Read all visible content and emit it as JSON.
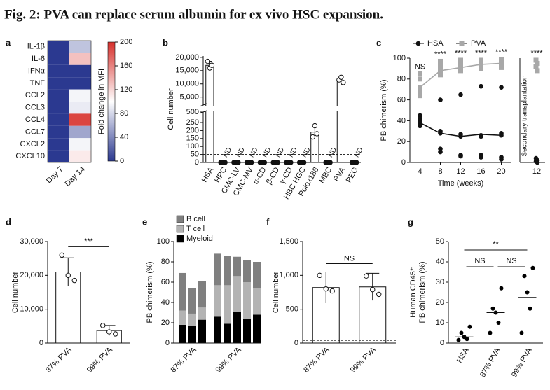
{
  "title": "Fig. 2: PVA can replace serum albumin for ex vivo HSC expansion.",
  "chart_data": [
    {
      "panel": "a",
      "type": "heatmap",
      "rows": [
        "IL-1β",
        "IL-6",
        "IFNα",
        "TNF",
        "CCL2",
        "CCL3",
        "CCL4",
        "CCL7",
        "CXCL2",
        "CXCL10"
      ],
      "columns": [
        "Day 7",
        "Day 14"
      ],
      "values": [
        [
          0,
          70
        ],
        [
          0,
          130
        ],
        [
          0,
          0
        ],
        [
          0,
          0
        ],
        [
          0,
          95
        ],
        [
          0,
          90
        ],
        [
          0,
          190
        ],
        [
          0,
          55
        ],
        [
          0,
          95
        ],
        [
          0,
          110
        ]
      ],
      "colorbar_label": "Fold change in MFI",
      "zlim": [
        0,
        200
      ],
      "zticks": [
        0,
        40,
        80,
        120,
        160,
        200
      ],
      "colors": [
        "#2b3990",
        "#ffffff",
        "#d7302c"
      ]
    },
    {
      "panel": "b",
      "type": "bar",
      "ylabel": "Cell number",
      "categories": [
        "HSA",
        "HPC",
        "CMC-LV",
        "CMC-MV",
        "α-CD",
        "β-CD",
        "γ-CD",
        "HBC HGC",
        "Polox188",
        "MBC",
        "PVA",
        "PEG"
      ],
      "values": [
        17000,
        0,
        0,
        0,
        0,
        0,
        0,
        0,
        190,
        0,
        11000,
        0
      ],
      "value_labels": [
        null,
        "ND",
        "ND",
        "ND",
        "ND",
        "ND",
        "ND",
        "ND",
        null,
        "ND",
        null,
        "ND"
      ],
      "errors": [
        1500,
        null,
        null,
        null,
        null,
        null,
        null,
        null,
        40,
        null,
        1500,
        null
      ],
      "points": [
        [
          18500,
          16000,
          17000
        ],
        [
          0,
          0,
          0
        ],
        [
          0,
          0,
          0
        ],
        [
          0,
          0,
          0
        ],
        [
          0,
          0,
          0
        ],
        [
          0,
          0,
          0
        ],
        [
          0,
          0,
          0
        ],
        [
          0,
          0,
          0
        ],
        [
          160,
          230,
          180
        ],
        [
          0,
          0,
          0
        ],
        [
          11500,
          12500,
          10500
        ],
        [
          0,
          0,
          0
        ]
      ],
      "segments": [
        {
          "ylim": [
            0,
            250
          ],
          "yticks": [
            0,
            50,
            100,
            150,
            200,
            250
          ]
        },
        {
          "ylim": [
            250,
            500
          ],
          "yticks": [
            500
          ]
        },
        {
          "ylim": [
            2000,
            20500
          ],
          "yticks": [
            {
              "value": 5000,
              "label": "5,000"
            },
            {
              "value": 10000,
              "label": "10,000"
            },
            {
              "value": 15000,
              "label": "15,000"
            },
            {
              "value": 20000,
              "label": "20,000"
            }
          ]
        }
      ],
      "threshold": 50,
      "color": "#ffffff"
    },
    {
      "panel": "c",
      "type": "line",
      "xlabel": "Time (weeks)",
      "ylabel": "PB chimerism (%)",
      "x": [
        4,
        8,
        12,
        16,
        20
      ],
      "xlim": [
        2,
        22
      ],
      "xticks": [
        4,
        8,
        12,
        16,
        20
      ],
      "ylim": [
        0,
        100
      ],
      "yticks": [
        0,
        20,
        40,
        60,
        80,
        100
      ],
      "series": [
        {
          "name": "HSA",
          "color": "#111111",
          "marker": "circle",
          "values": [
            38,
            28,
            25,
            27,
            26
          ],
          "points": [
            [
              45,
              42,
              40,
              38,
              35
            ],
            [
              60,
              30,
              28,
              13,
              10
            ],
            [
              65,
              27,
              25,
              7,
              6
            ],
            [
              73,
              26,
              25,
              7,
              5
            ],
            [
              72,
              28,
              26,
              5,
              3
            ]
          ]
        },
        {
          "name": "PVA",
          "color": "#a8a8a8",
          "marker": "square",
          "values": [
            72,
            88,
            91,
            94,
            95
          ],
          "points": [
            [
              85,
              80,
              72,
              68,
              64
            ],
            [
              97,
              94,
              92,
              88,
              84
            ],
            [
              98,
              95,
              92,
              90,
              88
            ],
            [
              98,
              96,
              94,
              92,
              90
            ],
            [
              99,
              97,
              95,
              93,
              91
            ]
          ]
        }
      ],
      "annotations": [
        "NS",
        "****",
        "****",
        "****",
        "****"
      ],
      "secondary": {
        "label": "Secondary transplantation",
        "x": [
          12
        ],
        "xticks": [
          12
        ],
        "series": [
          {
            "points": [
              [
                4,
                2,
                1,
                0
              ]
            ]
          },
          {
            "points": [
              [
                98,
                95,
                92,
                88
              ]
            ]
          }
        ],
        "annotations": [
          "****"
        ]
      }
    },
    {
      "panel": "d",
      "type": "bar",
      "ylabel": "Cell number",
      "categories": [
        "87% PVA",
        "99% PVA"
      ],
      "values": [
        21000,
        3700
      ],
      "errors": [
        4200,
        1500
      ],
      "points": [
        [
          26000,
          20000,
          18500
        ],
        [
          5200,
          3300,
          2700
        ]
      ],
      "ylim": [
        0,
        30000
      ],
      "yticks": [
        0,
        {
          "value": 10000,
          "label": "10,000"
        },
        {
          "value": 20000,
          "label": "20,000"
        },
        {
          "value": 30000,
          "label": "30,000"
        }
      ],
      "annotation": "***",
      "color": "#ffffff"
    },
    {
      "panel": "e",
      "type": "stacked_bar",
      "ylabel": "PB chimerism (%)",
      "categories": [
        null,
        null,
        null,
        null,
        null,
        null,
        null,
        null
      ],
      "group_labels": [
        "87% PVA",
        "99% PVA"
      ],
      "groups": [
        0,
        0,
        0,
        1,
        1,
        1,
        1,
        1
      ],
      "ylim": [
        0,
        100
      ],
      "yticks": [
        0,
        20,
        40,
        60,
        80,
        100
      ],
      "series": [
        {
          "name": "Myeloid",
          "color": "#000000",
          "values": [
            18,
            17,
            23,
            26,
            19,
            31,
            24,
            28
          ]
        },
        {
          "name": "T cell",
          "color": "#b3b3b3",
          "values": [
            14,
            12,
            12,
            31,
            38,
            35,
            36,
            26
          ]
        },
        {
          "name": "B cell",
          "color": "#7f7f7f",
          "values": [
            37,
            25,
            26,
            31,
            29,
            19,
            22,
            26
          ]
        }
      ]
    },
    {
      "panel": "f",
      "type": "bar",
      "ylabel": "Cell number",
      "categories": [
        "87% PVA",
        "99% PVA"
      ],
      "values": [
        820,
        830
      ],
      "errors": [
        230,
        200
      ],
      "points": [
        [
          1000,
          800,
          770
        ],
        [
          990,
          790,
          720
        ]
      ],
      "ylim": [
        0,
        1500
      ],
      "yticks": [
        0,
        500,
        {
          "value": 1000,
          "label": "1,000"
        },
        {
          "value": 1500,
          "label": "1,500"
        }
      ],
      "threshold": 40,
      "annotation": "NS",
      "color": "#ffffff"
    },
    {
      "panel": "g",
      "type": "dot",
      "ylabel": [
        "Human CD45⁺",
        "PB chimerism (%)"
      ],
      "categories": [
        "HSA",
        "87% PVA",
        "99% PVA"
      ],
      "values": [
        3,
        15,
        22.5
      ],
      "points": [
        [
          8,
          5,
          3,
          2,
          1.5
        ],
        [
          27,
          17,
          15,
          10,
          5
        ],
        [
          37,
          33,
          25,
          17,
          5
        ]
      ],
      "ylim": [
        0,
        50
      ],
      "yticks": [
        0,
        10,
        20,
        30,
        40,
        50
      ],
      "color": "#000000",
      "annotations": [
        {
          "label": "**",
          "from": 0,
          "to": 2
        },
        {
          "label": "NS",
          "from": 0,
          "to": 1
        },
        {
          "label": "NS",
          "from": 1,
          "to": 2
        }
      ]
    }
  ]
}
